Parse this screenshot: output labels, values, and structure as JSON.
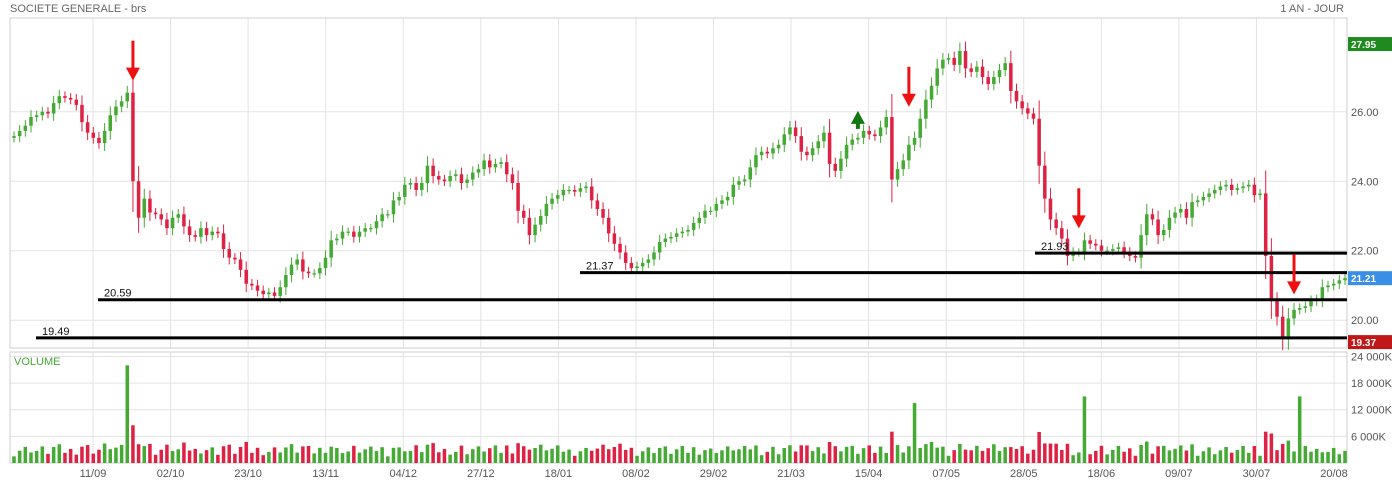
{
  "header": {
    "title": "SOCIETE GENERALE - brs",
    "period": "1 AN - JOUR"
  },
  "volume_panel": {
    "title": "VOLUME"
  },
  "colors": {
    "up": "#44aa33",
    "down": "#dd2244",
    "grid": "#e3e3e3",
    "arrow_down": "#ee1111",
    "arrow_up": "#117711"
  },
  "chart_data": [
    {
      "type": "candlestick",
      "title": "SOCIETE GENERALE - brs",
      "period": "1 AN - JOUR",
      "x_ticks": [
        "11/09",
        "02/10",
        "23/10",
        "13/11",
        "04/12",
        "27/12",
        "18/01",
        "08/02",
        "29/02",
        "21/03",
        "15/04",
        "07/05",
        "28/05",
        "18/06",
        "09/07",
        "30/07",
        "20/08"
      ],
      "y_ticks": [
        "20.00",
        "22.00",
        "24.00",
        "26.00"
      ],
      "ylim": [
        19.2,
        28.7
      ],
      "grid": true,
      "close_series": [
        25.3,
        25.45,
        25.6,
        25.85,
        25.9,
        26.0,
        25.95,
        26.25,
        26.45,
        26.4,
        26.35,
        26.2,
        25.7,
        25.4,
        25.25,
        25.1,
        25.45,
        25.9,
        26.15,
        26.3,
        26.55,
        24.0,
        22.95,
        23.5,
        23.1,
        23.05,
        22.9,
        22.65,
        22.95,
        23.05,
        22.7,
        22.45,
        22.4,
        22.65,
        22.45,
        22.55,
        22.5,
        22.05,
        21.8,
        21.75,
        21.45,
        21.05,
        21.0,
        20.85,
        20.75,
        20.8,
        20.7,
        20.95,
        21.3,
        21.6,
        21.75,
        21.4,
        21.35,
        21.35,
        21.5,
        21.8,
        22.3,
        22.35,
        22.55,
        22.55,
        22.4,
        22.55,
        22.65,
        22.65,
        22.85,
        23.05,
        23.05,
        23.45,
        23.55,
        23.9,
        23.95,
        23.75,
        23.95,
        24.45,
        24.15,
        24.05,
        24.0,
        24.15,
        24.2,
        23.95,
        24.05,
        24.25,
        24.35,
        24.6,
        24.4,
        24.5,
        24.55,
        24.2,
        23.95,
        23.15,
        22.95,
        22.45,
        22.75,
        23.0,
        23.35,
        23.5,
        23.6,
        23.75,
        23.75,
        23.7,
        23.8,
        23.85,
        23.45,
        23.2,
        22.95,
        22.5,
        22.2,
        21.95,
        21.65,
        21.5,
        21.55,
        21.65,
        21.75,
        21.95,
        22.25,
        22.35,
        22.4,
        22.5,
        22.55,
        22.6,
        22.8,
        22.95,
        23.15,
        23.15,
        23.35,
        23.45,
        23.55,
        23.9,
        24.0,
        24.05,
        24.4,
        24.75,
        24.85,
        24.8,
        24.95,
        25.05,
        25.35,
        25.55,
        25.3,
        24.85,
        24.75,
        24.95,
        25.15,
        25.4,
        24.5,
        24.3,
        24.65,
        25.05,
        25.2,
        25.25,
        25.45,
        25.35,
        25.3,
        25.55,
        25.85,
        24.05,
        24.35,
        24.6,
        25.05,
        25.25,
        25.8,
        26.35,
        26.75,
        27.25,
        27.5,
        27.55,
        27.35,
        27.75,
        27.25,
        27.15,
        27.3,
        27.0,
        26.8,
        27.0,
        27.2,
        27.4,
        26.6,
        26.3,
        26.1,
        25.95,
        25.8,
        24.45,
        23.5,
        22.9,
        22.65,
        22.35,
        21.85,
        21.95,
        21.95,
        22.3,
        22.2,
        22.15,
        22.0,
        22.0,
        22.05,
        22.1,
        21.95,
        21.85,
        21.8,
        22.45,
        23.05,
        22.9,
        22.45,
        22.6,
        22.95,
        23.1,
        23.2,
        22.95,
        23.4,
        23.45,
        23.55,
        23.65,
        23.75,
        23.85,
        23.9,
        23.75,
        23.8,
        23.85,
        23.9,
        23.6,
        23.65,
        21.85,
        20.55,
        20.1,
        19.45,
        20.05,
        20.3,
        20.35,
        20.4,
        20.55,
        20.6,
        20.95,
        21.0,
        21.05,
        21.15,
        21.21
      ],
      "last_price": "21.21",
      "period_high": "27.95",
      "period_low": "19.37",
      "levels": [
        {
          "label": "19.49",
          "value": 19.49
        },
        {
          "label": "20.59",
          "value": 20.59
        },
        {
          "label": "21.37",
          "value": 21.37
        },
        {
          "label": "21.93",
          "value": 21.93
        }
      ],
      "arrows": [
        {
          "direction": "down",
          "bar": 21
        },
        {
          "direction": "down",
          "bar": 158
        },
        {
          "direction": "down",
          "bar": 188
        },
        {
          "direction": "down",
          "bar": 226
        },
        {
          "direction": "up",
          "bar": 149
        }
      ]
    },
    {
      "type": "bar",
      "title": "VOLUME",
      "y_ticks": [
        "6 000K",
        "12 000K",
        "18 000K",
        "24 000K"
      ],
      "ylim": [
        0,
        25000
      ],
      "spike_values_k": [
        {
          "bar": 20,
          "value": 22000
        },
        {
          "bar": 21,
          "value": 8500
        },
        {
          "bar": 159,
          "value": 13500
        },
        {
          "bar": 189,
          "value": 15000
        },
        {
          "bar": 227,
          "value": 15000
        }
      ]
    }
  ]
}
